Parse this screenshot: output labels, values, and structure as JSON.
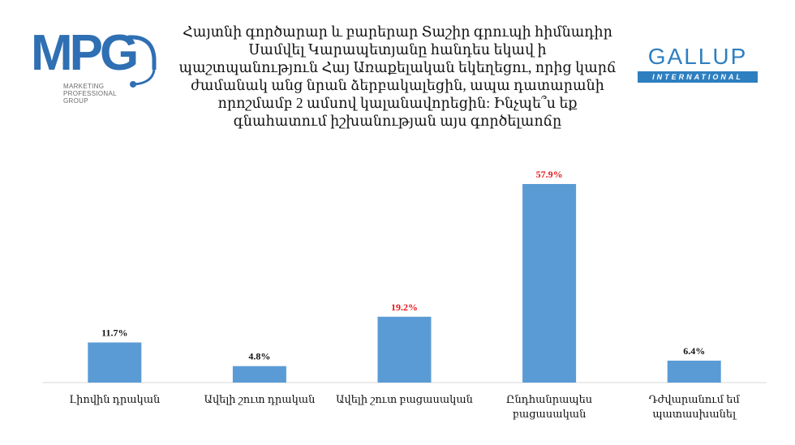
{
  "title_lines": [
    "Հայտնի գործարար և բարերար Տաշիր գրուպի հիմնադիր",
    "Սամվել Կարապետյանը հանդես եկավ ի",
    "պաշտպանություն Հայ Առաքելական եկեղեցու, որից կարճ",
    "ժամանակ անց նրան ձերբակալեցին, ապա դատարանի",
    "որոշմամբ 2 ամսով կալանավորեցին: Ինչպե՞ս եք",
    "գնահատում իշխանության այս գործելաոճը"
  ],
  "logos": {
    "mpg": {
      "text": "MPG",
      "tagline": [
        "MARKETING",
        "PROFESSIONAL",
        "GROUP"
      ],
      "color": "#2f6fb3"
    },
    "gallup": {
      "text": "GALLUP",
      "subtitle": "INTERNATIONAL",
      "color": "#2e7fc0"
    }
  },
  "colors": {
    "bar": "#5b9bd5",
    "highlight_label": "#e8161b",
    "label": "#111111"
  },
  "chart_data": {
    "type": "bar",
    "categories": [
      [
        "Լիովին դրական"
      ],
      [
        "Ավելի շուտ դրական"
      ],
      [
        "Ավելի շուտ բացասական"
      ],
      [
        "Ընդհանրապես",
        "բացասական"
      ],
      [
        "Դժվարանում եմ",
        "պատասխանել"
      ]
    ],
    "values": [
      11.7,
      4.8,
      19.2,
      57.9,
      6.4
    ],
    "value_labels": [
      "11.7%",
      "4.8%",
      "19.2%",
      "57.9%",
      "6.4%"
    ],
    "highlighted": [
      false,
      false,
      true,
      true,
      false
    ],
    "ylim": [
      0,
      60
    ],
    "grid": false,
    "legend": "none"
  }
}
